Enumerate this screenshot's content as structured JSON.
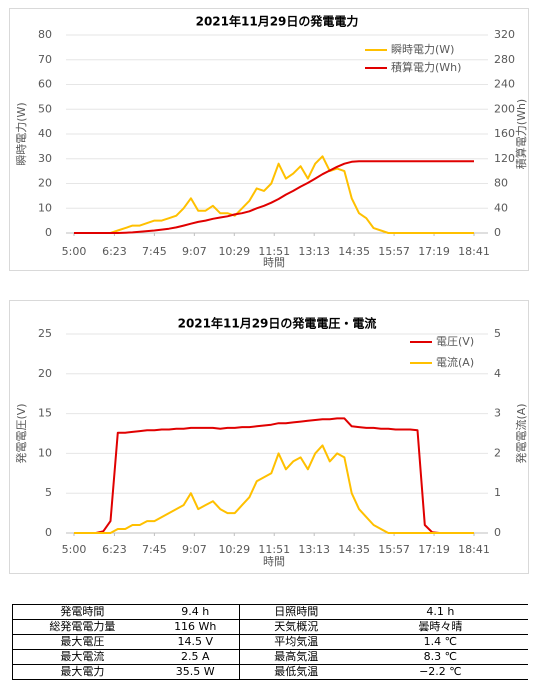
{
  "chart_data": [
    {
      "type": "line",
      "title": "2021年11月29日の発電電力",
      "xlabel": "時間",
      "ylabel": "瞬時電力(W)",
      "y2label": "積算電力(Wh)",
      "x": [
        300,
        315,
        330,
        345,
        360,
        375,
        390,
        405,
        420,
        435,
        450,
        465,
        480,
        495,
        510,
        525,
        540,
        555,
        570,
        585,
        600,
        615,
        630,
        645,
        660,
        675,
        690,
        705,
        720,
        735,
        750,
        765,
        780,
        795,
        810,
        825,
        840,
        855,
        870,
        885,
        900,
        915,
        930,
        945,
        960,
        975,
        990,
        1005,
        1020,
        1035,
        1050,
        1065,
        1080,
        1095,
        1110,
        1121
      ],
      "xlim": [
        300,
        1121
      ],
      "xticks": [
        {
          "value": 300,
          "label": "5:00"
        },
        {
          "value": 383,
          "label": "6:23"
        },
        {
          "value": 465,
          "label": "7:45"
        },
        {
          "value": 547,
          "label": "9:07"
        },
        {
          "value": 629,
          "label": "10:29"
        },
        {
          "value": 711,
          "label": "11:51"
        },
        {
          "value": 793,
          "label": "13:13"
        },
        {
          "value": 875,
          "label": "14:35"
        },
        {
          "value": 957,
          "label": "15:57"
        },
        {
          "value": 1039,
          "label": "17:19"
        },
        {
          "value": 1121,
          "label": "18:41"
        }
      ],
      "ylim": [
        0,
        80
      ],
      "yticks": [
        0,
        10,
        20,
        30,
        40,
        50,
        60,
        70,
        80
      ],
      "y2lim": [
        0,
        320
      ],
      "y2ticks": [
        0,
        40,
        80,
        120,
        160,
        200,
        240,
        280,
        320
      ],
      "grid": true,
      "legend": "upper right",
      "series": [
        {
          "name": "瞬時電力(W)",
          "color": "#ffc000",
          "values": [
            0,
            0,
            0,
            0,
            0,
            0,
            1,
            2,
            3,
            3,
            4,
            5,
            5,
            6,
            7,
            10,
            14,
            9,
            9,
            11,
            8,
            8,
            7,
            10,
            13,
            18,
            17,
            20,
            28,
            22,
            24,
            27,
            22,
            28,
            31,
            25,
            26,
            25,
            14,
            8,
            6,
            2,
            1,
            0,
            0,
            0,
            0,
            0,
            0,
            0,
            0,
            0,
            0,
            0,
            0,
            0
          ]
        },
        {
          "name": "積算電力(Wh)",
          "color": "#e00000",
          "axis": "y2",
          "values": [
            0,
            0,
            0,
            0,
            0,
            0,
            0,
            0.5,
            1,
            2,
            3,
            4,
            5.5,
            7,
            9,
            12,
            15,
            18,
            20,
            23,
            25,
            27,
            30,
            32,
            35,
            40,
            44,
            49,
            55,
            62,
            68,
            75,
            81,
            88,
            95,
            101,
            107,
            112,
            115,
            116,
            116,
            116,
            116,
            116,
            116,
            116,
            116,
            116,
            116,
            116,
            116,
            116,
            116,
            116,
            116,
            116
          ]
        }
      ]
    },
    {
      "type": "line",
      "title": "2021年11月29日の発電電圧・電流",
      "xlabel": "時間",
      "ylabel": "発電電圧(V)",
      "y2label": "発電電流(A)",
      "x": [
        300,
        315,
        330,
        345,
        360,
        375,
        390,
        405,
        420,
        435,
        450,
        465,
        480,
        495,
        510,
        525,
        540,
        555,
        570,
        585,
        600,
        615,
        630,
        645,
        660,
        675,
        690,
        705,
        720,
        735,
        750,
        765,
        780,
        795,
        810,
        825,
        840,
        855,
        870,
        885,
        900,
        915,
        930,
        945,
        960,
        975,
        990,
        1005,
        1020,
        1035,
        1050,
        1065,
        1080,
        1095,
        1110,
        1121
      ],
      "xlim": [
        300,
        1121
      ],
      "xticks": [
        {
          "value": 300,
          "label": "5:00"
        },
        {
          "value": 383,
          "label": "6:23"
        },
        {
          "value": 465,
          "label": "7:45"
        },
        {
          "value": 547,
          "label": "9:07"
        },
        {
          "value": 629,
          "label": "10:29"
        },
        {
          "value": 711,
          "label": "11:51"
        },
        {
          "value": 793,
          "label": "13:13"
        },
        {
          "value": 875,
          "label": "14:35"
        },
        {
          "value": 957,
          "label": "15:57"
        },
        {
          "value": 1039,
          "label": "17:19"
        },
        {
          "value": 1121,
          "label": "18:41"
        }
      ],
      "ylim": [
        0,
        25
      ],
      "yticks": [
        0,
        5,
        10,
        15,
        20,
        25
      ],
      "y2lim": [
        0,
        5
      ],
      "y2ticks": [
        0,
        1,
        2,
        3,
        4,
        5
      ],
      "grid": true,
      "legend": "upper right",
      "series": [
        {
          "name": "電圧(V)",
          "color": "#e00000",
          "values": [
            0,
            0,
            0,
            0,
            0.2,
            1.5,
            12.6,
            12.6,
            12.7,
            12.8,
            12.9,
            12.9,
            13,
            13,
            13.1,
            13.1,
            13.2,
            13.2,
            13.2,
            13.2,
            13.1,
            13.2,
            13.2,
            13.3,
            13.3,
            13.4,
            13.5,
            13.6,
            13.8,
            13.8,
            13.9,
            14,
            14.1,
            14.2,
            14.3,
            14.3,
            14.4,
            14.4,
            13.4,
            13.3,
            13.2,
            13.2,
            13.1,
            13.1,
            13,
            13,
            13,
            12.9,
            1,
            0.1,
            0,
            0,
            0,
            0,
            0,
            0
          ]
        },
        {
          "name": "電流(A)",
          "color": "#ffc000",
          "axis": "y2",
          "values": [
            0,
            0,
            0,
            0,
            0,
            0,
            0.1,
            0.1,
            0.2,
            0.2,
            0.3,
            0.3,
            0.4,
            0.5,
            0.6,
            0.7,
            1.0,
            0.6,
            0.7,
            0.8,
            0.6,
            0.5,
            0.5,
            0.7,
            0.9,
            1.3,
            1.4,
            1.5,
            2.0,
            1.6,
            1.8,
            1.9,
            1.6,
            2.0,
            2.2,
            1.8,
            2.0,
            1.9,
            1.0,
            0.6,
            0.4,
            0.2,
            0.1,
            0,
            0,
            0,
            0,
            0,
            0,
            0,
            0,
            0,
            0,
            0,
            0,
            0
          ]
        }
      ]
    }
  ],
  "table": {
    "rows": [
      [
        "発電時間",
        "9.4 h",
        "日照時間",
        "4.1 h"
      ],
      [
        "総発電電力量",
        "116 Wh",
        "天気概況",
        "曇時々晴"
      ],
      [
        "最大電圧",
        "14.5 V",
        "平均気温",
        "1.4 ℃"
      ],
      [
        "最大電流",
        "2.5 A",
        "最高気温",
        "8.3 ℃"
      ],
      [
        "最大電力",
        "35.5 W",
        "最低気温",
        "−2.2 ℃"
      ]
    ]
  }
}
